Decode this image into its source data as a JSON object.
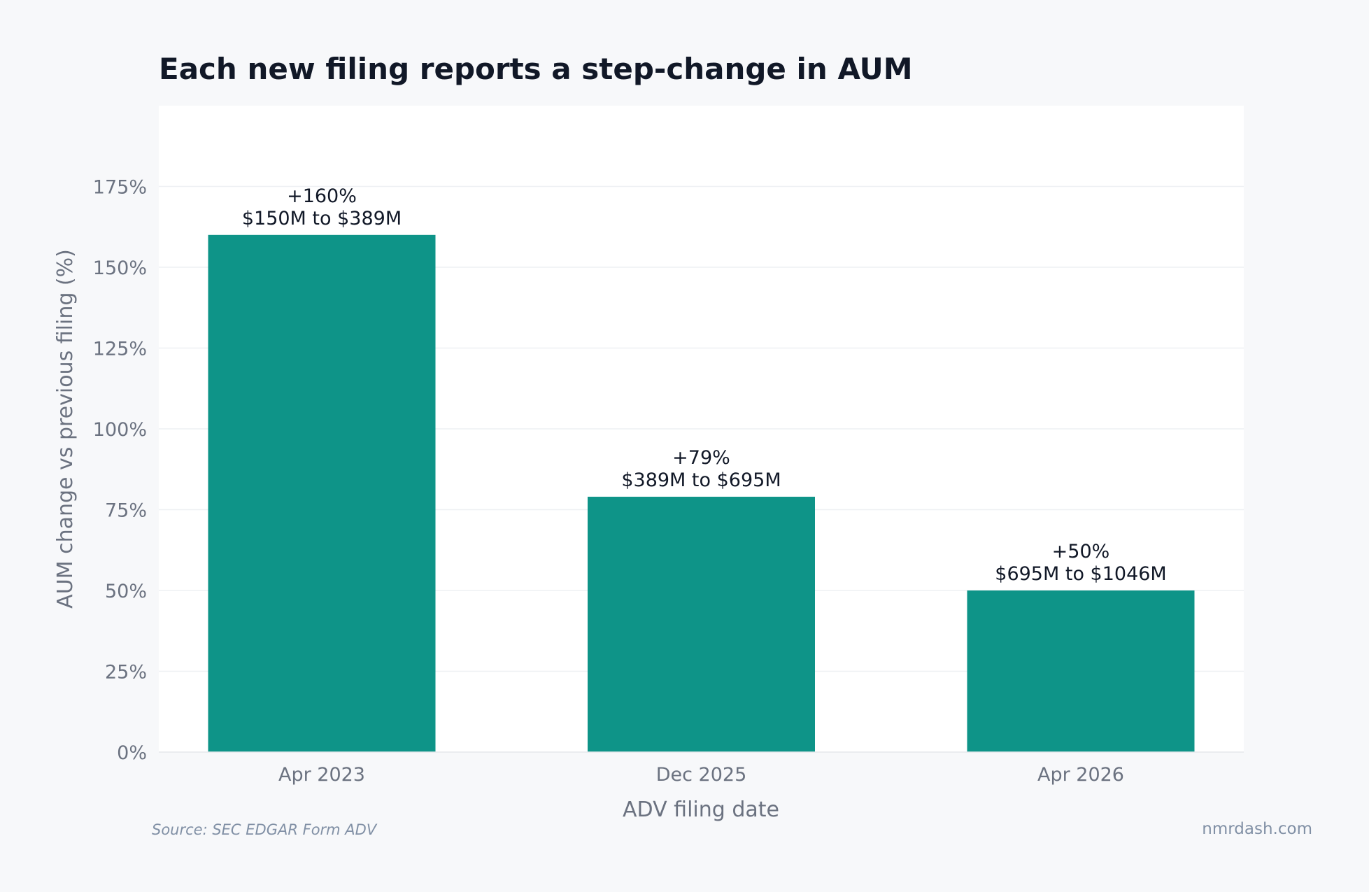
{
  "chart_data": {
    "type": "bar",
    "title": "Each new filing reports a step-change in AUM",
    "xlabel": "ADV filing date",
    "ylabel": "AUM change vs previous filing (%)",
    "categories": [
      "Apr 2023",
      "Dec 2025",
      "Apr 2026"
    ],
    "values": [
      160,
      79,
      50
    ],
    "data_labels": [
      [
        "+160%",
        "$150M to $389M"
      ],
      [
        "+79%",
        "$389M to $695M"
      ],
      [
        "+50%",
        "$695M to $1046M"
      ]
    ],
    "ylim": [
      0,
      200
    ],
    "yticks": [
      0,
      25,
      50,
      75,
      100,
      125,
      150,
      175
    ],
    "ytick_format": "%",
    "grid": true,
    "bar_color": "#0e9488"
  },
  "footer": {
    "source": "Source: SEC EDGAR Form ADV",
    "brand": "nmrdash.com"
  }
}
